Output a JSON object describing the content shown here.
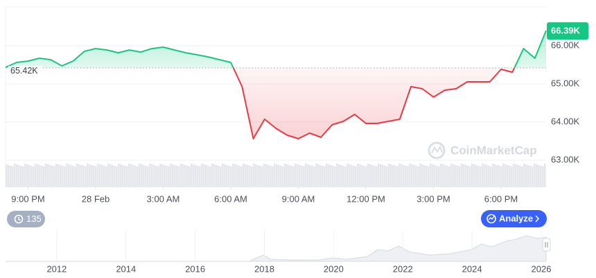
{
  "chart_data": {
    "type": "line",
    "x": [
      0,
      0.5,
      1,
      1.5,
      2,
      2.5,
      3,
      3.5,
      4,
      4.5,
      5,
      5.5,
      6,
      6.5,
      7,
      7.5,
      8,
      8.5,
      9,
      9.5,
      10,
      10.5,
      11,
      11.5,
      12,
      12.5,
      13,
      13.5,
      14,
      14.5,
      15,
      15.5,
      16,
      16.5,
      17,
      17.5,
      18,
      18.5,
      19,
      19.5,
      20,
      20.5,
      21,
      21.5,
      22,
      22.5,
      23,
      23.5,
      24
    ],
    "values": [
      65436,
      65564,
      65600,
      65673,
      65636,
      65473,
      65600,
      65855,
      65927,
      65891,
      65818,
      65891,
      65836,
      65927,
      65964,
      65891,
      65818,
      65764,
      65709,
      65636,
      65564,
      64927,
      63564,
      64073,
      63836,
      63655,
      63564,
      63709,
      63600,
      63927,
      64018,
      64200,
      63964,
      63964,
      64018,
      64073,
      64927,
      64873,
      64655,
      64836,
      64873,
      65055,
      65055,
      65055,
      65382,
      65309,
      65927,
      65673,
      66400
    ],
    "up_color": "#16c784",
    "down_color": "#ea3943",
    "baseline": {
      "value": 65420,
      "label": "65.42K"
    },
    "last_label": {
      "value": 66390,
      "label": "66.39K"
    },
    "xlim": [
      0,
      24
    ],
    "xticks": [
      {
        "value": 1,
        "label": "9:00 PM"
      },
      {
        "value": 4,
        "label": "28 Feb"
      },
      {
        "value": 7,
        "label": "3:00 AM"
      },
      {
        "value": 10,
        "label": "6:00 AM"
      },
      {
        "value": 13,
        "label": "9:00 AM"
      },
      {
        "value": 16,
        "label": "12:00 PM"
      },
      {
        "value": 19,
        "label": "3:00 PM"
      },
      {
        "value": 22,
        "label": "6:00 PM"
      }
    ],
    "ylim": [
      62290,
      67020
    ],
    "yticks": [
      {
        "value": 66000,
        "label": "66.00K"
      },
      {
        "value": 65000,
        "label": "65.00K"
      },
      {
        "value": 64000,
        "label": "64.00K"
      },
      {
        "value": 63000,
        "label": "63.00K"
      }
    ],
    "grid": true,
    "watermark": "CoinMarketCap"
  },
  "controls": {
    "history_count": 135,
    "analyze": "Analyze"
  },
  "navigator": {
    "xlim": [
      2010.52,
      2026.14
    ],
    "xticks": [
      2012,
      2014,
      2016,
      2018,
      2020,
      2022,
      2024,
      2026
    ]
  }
}
